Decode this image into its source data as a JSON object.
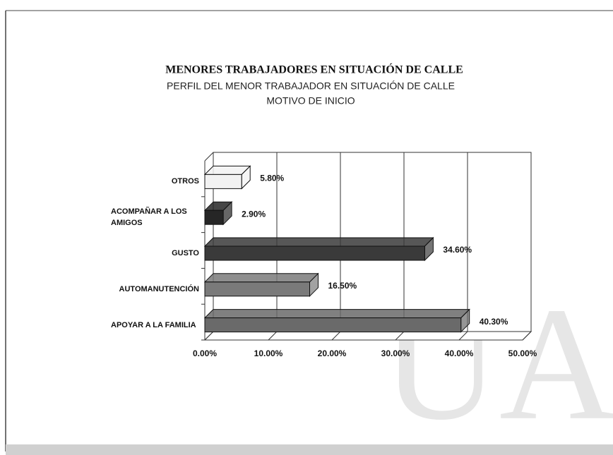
{
  "watermark": "UAN",
  "chart_data": {
    "type": "bar",
    "orientation": "horizontal",
    "title": "MENORES TRABAJADORES EN SITUACIÓN DE CALLE",
    "subtitle": "PERFIL DEL MENOR TRABAJADOR EN SITUACIÓN DE CALLE",
    "subtitle2": "MOTIVO DE INICIO",
    "categories": [
      "OTROS",
      "ACOMPAÑAR A LOS AMIGOS",
      "GUSTO",
      "AUTOMANUTENCIÓN",
      "APOYAR A LA FAMILIA"
    ],
    "values": [
      5.8,
      2.9,
      34.6,
      16.5,
      40.3
    ],
    "value_labels": [
      "5.80%",
      "2.90%",
      "34.60%",
      "16.50%",
      "40.30%"
    ],
    "colors": [
      "#f2f2f2",
      "#262626",
      "#3a3a3a",
      "#7a7a7a",
      "#6a6a6a"
    ],
    "xlim": [
      0,
      50
    ],
    "xticks": [
      {
        "value": 0,
        "label": "0.00%"
      },
      {
        "value": 10,
        "label": "10.00%"
      },
      {
        "value": 20,
        "label": "20.00%"
      },
      {
        "value": 30,
        "label": "30.00%"
      },
      {
        "value": 40,
        "label": "40.00%"
      },
      {
        "value": 50,
        "label": "50.00%"
      }
    ],
    "grid": true
  }
}
